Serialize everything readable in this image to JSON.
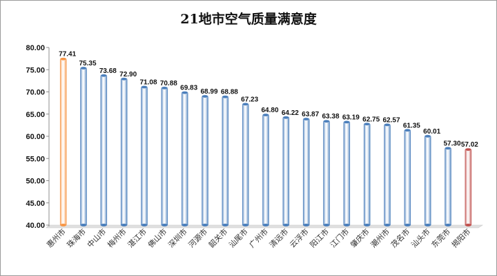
{
  "chart_data": {
    "type": "bar",
    "title": "21地市空气质量满意度",
    "xlabel": "",
    "ylabel": "",
    "ylim": [
      40,
      80
    ],
    "yticks": [
      "40.00",
      "45.00",
      "50.00",
      "55.00",
      "60.00",
      "65.00",
      "70.00",
      "75.00",
      "80.00"
    ],
    "grid": false,
    "legend": "none",
    "categories": [
      "惠州市",
      "珠海市",
      "中山市",
      "梅州市",
      "湛江市",
      "佛山市",
      "深圳市",
      "河源市",
      "韶关市",
      "汕尾市",
      "广州市",
      "清远市",
      "云浮市",
      "阳江市",
      "江门市",
      "肇庆市",
      "潮州市",
      "茂名市",
      "汕头市",
      "东莞市",
      "揭阳市"
    ],
    "values": [
      77.41,
      75.35,
      73.68,
      72.9,
      71.08,
      70.88,
      69.83,
      68.99,
      68.88,
      67.23,
      64.8,
      64.22,
      63.87,
      63.38,
      63.19,
      62.75,
      62.57,
      61.35,
      60.01,
      57.3,
      57.02
    ],
    "value_labels": [
      "77.41",
      "75.35",
      "73.68",
      "72.90",
      "71.08",
      "70.88",
      "69.83",
      "68.99",
      "68.88",
      "67.23",
      "64.80",
      "64.22",
      "63.87",
      "63.38",
      "63.19",
      "62.75",
      "62.57",
      "61.35",
      "60.01",
      "57.30",
      "57.02"
    ],
    "colors": {
      "default": "#4a7ebb",
      "highest": "#f79646",
      "lowest": "#c0504d",
      "floor": "#e0e0e0"
    }
  }
}
